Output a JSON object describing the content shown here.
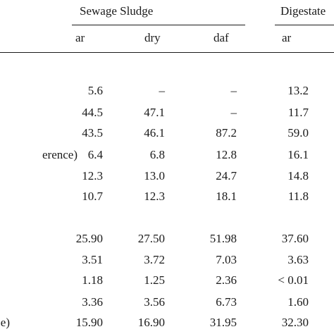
{
  "header": {
    "group1": "Sewage Sludge",
    "group2": "Digestate",
    "sub": [
      "ar",
      "dry",
      "daf",
      "ar"
    ]
  },
  "rows": [
    {
      "label": "",
      "v": [
        "5.6",
        "–",
        "–",
        "13.2"
      ]
    },
    {
      "label": "",
      "v": [
        "44.5",
        "47.1",
        "–",
        "11.7"
      ]
    },
    {
      "label": "",
      "v": [
        "43.5",
        "46.1",
        "87.2",
        "59.0"
      ]
    },
    {
      "label": "erence)",
      "v": [
        "6.4",
        "6.8",
        "12.8",
        "16.1"
      ]
    },
    {
      "label": "",
      "v": [
        "12.3",
        "13.0",
        "24.7",
        "14.8"
      ]
    },
    {
      "label": "",
      "v": [
        "10.7",
        "12.3",
        "18.1",
        "11.8"
      ]
    },
    {
      "label": "",
      "v": [
        "25.90",
        "27.50",
        "51.98",
        "37.60"
      ]
    },
    {
      "label": "",
      "v": [
        "3.51",
        "3.72",
        "7.03",
        "3.63"
      ]
    },
    {
      "label": "",
      "v": [
        "1.18",
        "1.25",
        "2.36",
        "< 0.01"
      ]
    },
    {
      "label": "",
      "v": [
        "3.36",
        "3.56",
        "6.73",
        "1.60"
      ]
    },
    {
      "label": "e)",
      "v": [
        "15.90",
        "16.90",
        "31.95",
        "32.30"
      ]
    }
  ]
}
